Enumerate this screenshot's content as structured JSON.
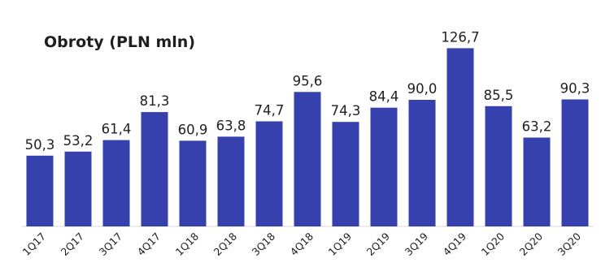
{
  "chart_data": {
    "type": "bar",
    "title": "Obroty (PLN mln)",
    "xlabel": "",
    "ylabel": "",
    "categories": [
      "1Q17",
      "2Q17",
      "3Q17",
      "4Q17",
      "1Q18",
      "2Q18",
      "3Q18",
      "4Q18",
      "1Q19",
      "2Q19",
      "3Q19",
      "4Q19",
      "1Q20",
      "2Q20",
      "3Q20"
    ],
    "values": [
      50.3,
      53.2,
      61.4,
      81.3,
      60.9,
      63.8,
      74.7,
      95.6,
      74.3,
      84.4,
      90.0,
      126.7,
      85.5,
      63.2,
      90.3
    ],
    "data_labels": [
      "50,3",
      "53,2",
      "61,4",
      "81,3",
      "60,9",
      "63,8",
      "74,7",
      "95,6",
      "74,3",
      "84,4",
      "90,0",
      "126,7",
      "85,5",
      "63,2",
      "90,3"
    ],
    "ylim": [
      0,
      135
    ],
    "bar_color": "#3641ad",
    "grid": false,
    "legend": "none"
  }
}
